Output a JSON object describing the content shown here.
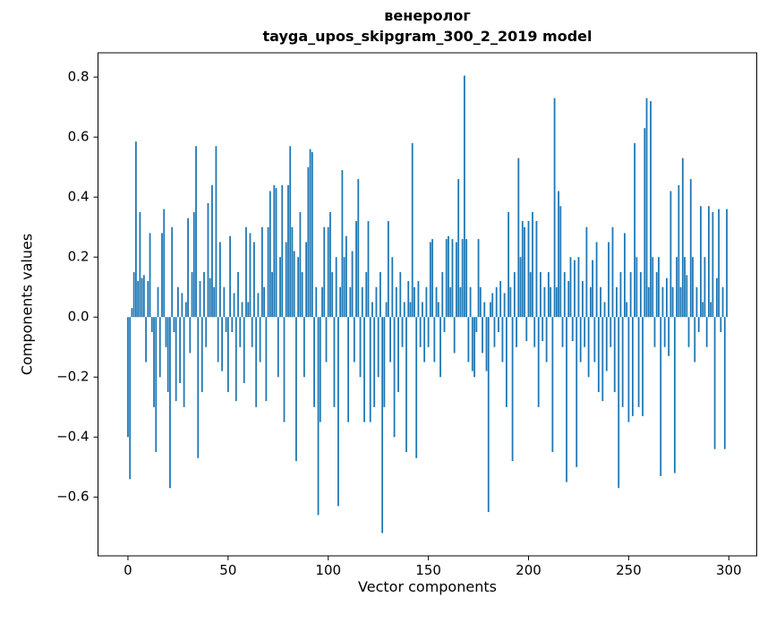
{
  "chart_data": {
    "type": "bar",
    "title": "венеролог",
    "subtitle": "tayga_upos_skipgram_300_2_2019 model",
    "xlabel": "Vector components",
    "ylabel": "Components values",
    "bar_color": "#1f77b4",
    "xlim": [
      -14.95,
      313.95
    ],
    "ylim": [
      -0.796,
      0.881
    ],
    "xticks": [
      {
        "value": 0,
        "label": "0"
      },
      {
        "value": 50,
        "label": "50"
      },
      {
        "value": 100,
        "label": "100"
      },
      {
        "value": 150,
        "label": "150"
      },
      {
        "value": 200,
        "label": "200"
      },
      {
        "value": 250,
        "label": "250"
      },
      {
        "value": 300,
        "label": "300"
      }
    ],
    "yticks": [
      {
        "value": -0.6,
        "label": "−0.6"
      },
      {
        "value": -0.4,
        "label": "−0.4"
      },
      {
        "value": -0.2,
        "label": "−0.2"
      },
      {
        "value": 0.0,
        "label": "0.0"
      },
      {
        "value": 0.2,
        "label": "0.2"
      },
      {
        "value": 0.4,
        "label": "0.4"
      },
      {
        "value": 0.6,
        "label": "0.6"
      },
      {
        "value": 0.8,
        "label": "0.8"
      }
    ],
    "x_start": 0,
    "bar_width": 0.8,
    "values": [
      -0.4,
      -0.54,
      0.03,
      0.15,
      0.585,
      0.12,
      0.35,
      0.13,
      0.14,
      -0.15,
      0.12,
      0.28,
      -0.05,
      -0.3,
      -0.45,
      0.1,
      -0.2,
      0.28,
      0.36,
      -0.1,
      -0.25,
      -0.57,
      0.3,
      -0.05,
      -0.28,
      0.1,
      -0.22,
      0.08,
      -0.3,
      0.05,
      0.33,
      -0.12,
      0.15,
      0.35,
      0.57,
      -0.47,
      0.12,
      -0.25,
      0.15,
      -0.1,
      0.38,
      0.13,
      0.44,
      0.1,
      0.57,
      -0.15,
      0.25,
      -0.18,
      0.1,
      -0.05,
      -0.25,
      0.27,
      -0.05,
      0.08,
      -0.28,
      0.15,
      -0.1,
      0.05,
      -0.22,
      0.3,
      0.05,
      0.28,
      -0.1,
      0.25,
      -0.3,
      0.08,
      -0.15,
      0.3,
      0.1,
      -0.28,
      0.3,
      0.42,
      0.15,
      0.44,
      0.43,
      -0.2,
      0.2,
      0.44,
      -0.35,
      0.25,
      0.44,
      0.57,
      0.3,
      0.22,
      -0.48,
      0.2,
      0.35,
      0.15,
      -0.2,
      0.25,
      0.5,
      0.56,
      0.55,
      -0.3,
      0.1,
      -0.66,
      -0.35,
      0.1,
      0.3,
      -0.15,
      0.3,
      0.35,
      0.15,
      -0.3,
      0.2,
      -0.63,
      0.1,
      0.49,
      0.2,
      0.27,
      -0.35,
      0.1,
      0.22,
      -0.15,
      0.32,
      0.46,
      -0.2,
      0.1,
      -0.35,
      0.15,
      0.32,
      -0.35,
      0.05,
      -0.3,
      0.1,
      -0.2,
      0.15,
      -0.72,
      -0.3,
      0.05,
      0.32,
      -0.15,
      0.2,
      -0.4,
      0.1,
      -0.25,
      0.15,
      -0.1,
      0.05,
      -0.45,
      0.12,
      0.05,
      0.58,
      0.1,
      -0.47,
      0.12,
      -0.1,
      0.05,
      -0.15,
      0.1,
      -0.1,
      0.25,
      0.26,
      -0.15,
      0.1,
      0.05,
      -0.2,
      0.15,
      -0.05,
      0.26,
      0.27,
      0.1,
      0.26,
      -0.12,
      0.25,
      0.46,
      0.1,
      0.26,
      0.805,
      0.26,
      -0.15,
      0.1,
      -0.18,
      -0.2,
      -0.05,
      0.26,
      0.1,
      -0.12,
      0.05,
      -0.18,
      -0.65,
      0.05,
      0.08,
      -0.1,
      0.1,
      -0.05,
      0.12,
      -0.15,
      0.08,
      -0.3,
      0.35,
      0.1,
      -0.48,
      0.15,
      -0.1,
      0.53,
      0.2,
      0.32,
      0.3,
      -0.08,
      0.32,
      0.15,
      0.35,
      -0.1,
      0.32,
      -0.3,
      0.15,
      -0.08,
      0.1,
      -0.15,
      0.15,
      0.1,
      -0.45,
      0.73,
      0.1,
      0.42,
      0.37,
      -0.1,
      0.15,
      -0.55,
      0.12,
      0.2,
      -0.08,
      0.19,
      -0.5,
      0.2,
      -0.15,
      0.12,
      -0.1,
      0.3,
      -0.2,
      0.1,
      0.19,
      -0.15,
      0.25,
      -0.25,
      0.1,
      -0.28,
      0.05,
      -0.18,
      0.25,
      -0.1,
      0.3,
      -0.25,
      0.1,
      -0.57,
      0.15,
      -0.3,
      0.28,
      0.05,
      -0.35,
      0.15,
      -0.33,
      0.58,
      0.2,
      -0.3,
      0.15,
      -0.33,
      0.63,
      0.73,
      0.1,
      0.72,
      0.2,
      -0.1,
      0.15,
      0.2,
      -0.53,
      0.1,
      -0.1,
      0.13,
      -0.13,
      0.42,
      0.1,
      -0.52,
      0.2,
      0.44,
      0.1,
      0.53,
      0.2,
      0.14,
      -0.1,
      0.46,
      0.2,
      -0.15,
      0.1,
      -0.05,
      0.37,
      0.05,
      0.2,
      -0.1,
      0.37,
      0.05,
      0.35,
      -0.44,
      0.13,
      0.36,
      -0.05,
      0.1,
      -0.44,
      0.36
    ]
  }
}
